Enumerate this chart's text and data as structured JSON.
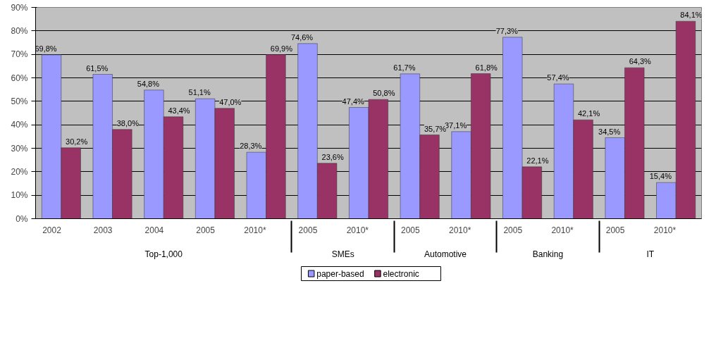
{
  "chart_data": {
    "type": "bar",
    "categories": [
      "2002",
      "2003",
      "2004",
      "2005",
      "2010*",
      "2005",
      "2010*",
      "2005",
      "2010*",
      "2005",
      "2010*",
      "2005",
      "2010*"
    ],
    "annotations": [
      "Top-1,000",
      "SMEs",
      "Automotive",
      "Banking",
      "IT"
    ],
    "series": [
      {
        "name": "paper-based",
        "color": "#9999ff",
        "values": [
          69.8,
          61.5,
          54.8,
          51.1,
          28.3,
          74.6,
          47.4,
          61.7,
          37.1,
          77.3,
          57.4,
          34.5,
          15.4
        ],
        "value_labels": [
          "69,8%",
          "61,5%",
          "54,8%",
          "51,1%",
          "28,3%",
          "74,6%",
          "47,4%",
          "61,7%",
          "37,1%",
          "77,3%",
          "57,4%",
          "34,5%",
          "15,4%"
        ]
      },
      {
        "name": "electronic",
        "color": "#993366",
        "values": [
          30.2,
          38.0,
          43.4,
          47.0,
          69.9,
          23.6,
          50.8,
          35.7,
          61.8,
          22.1,
          42.1,
          64.3,
          84.1
        ],
        "value_labels": [
          "30,2%",
          "38,0%",
          "43,4%",
          "47,0%",
          "69,9%",
          "23,6%",
          "50,8%",
          "35,7%",
          "61,8%",
          "22,1%",
          "42,1%",
          "64,3%",
          "84,1%"
        ]
      }
    ],
    "ylim": [
      0,
      90
    ],
    "yticks": [
      {
        "value": 0,
        "label": "0%"
      },
      {
        "value": 10,
        "label": "10%"
      },
      {
        "value": 20,
        "label": "20%"
      },
      {
        "value": 30,
        "label": "30%"
      },
      {
        "value": 40,
        "label": "40%"
      },
      {
        "value": 50,
        "label": "50%"
      },
      {
        "value": 60,
        "label": "60%"
      },
      {
        "value": 70,
        "label": "70%"
      },
      {
        "value": 80,
        "label": "80%"
      },
      {
        "value": 90,
        "label": "90%"
      }
    ],
    "grid": "y",
    "legend": "bottom"
  }
}
